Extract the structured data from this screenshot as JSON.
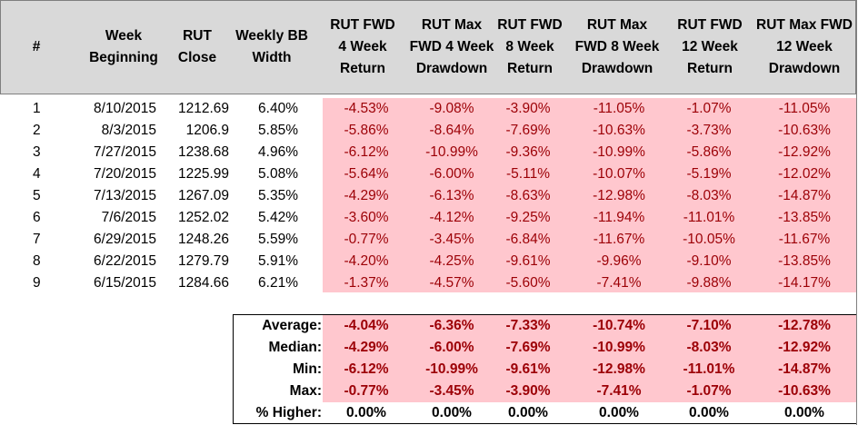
{
  "headers": [
    "#",
    "Week\nBeginning",
    "RUT\nClose",
    "Weekly BB\nWidth",
    "RUT FWD\n4 Week\nReturn",
    "RUT Max\nFWD 4 Week\nDrawdown",
    "RUT FWD\n8 Week\nReturn",
    "RUT Max\nFWD 8 Week\nDrawdown",
    "RUT FWD\n12 Week\nReturn",
    "RUT Max FWD\n12 Week\nDrawdown"
  ],
  "rows": [
    {
      "n": "1",
      "week": "8/10/2015",
      "close": "1212.69",
      "bb": "6.40%",
      "r4": "-4.53%",
      "d4": "-9.08%",
      "r8": "-3.90%",
      "d8": "-11.05%",
      "r12": "-1.07%",
      "d12": "-11.05%"
    },
    {
      "n": "2",
      "week": "8/3/2015",
      "close": "1206.9",
      "bb": "5.85%",
      "r4": "-5.86%",
      "d4": "-8.64%",
      "r8": "-7.69%",
      "d8": "-10.63%",
      "r12": "-3.73%",
      "d12": "-10.63%"
    },
    {
      "n": "3",
      "week": "7/27/2015",
      "close": "1238.68",
      "bb": "4.96%",
      "r4": "-6.12%",
      "d4": "-10.99%",
      "r8": "-9.36%",
      "d8": "-10.99%",
      "r12": "-5.86%",
      "d12": "-12.92%"
    },
    {
      "n": "4",
      "week": "7/20/2015",
      "close": "1225.99",
      "bb": "5.08%",
      "r4": "-5.64%",
      "d4": "-6.00%",
      "r8": "-5.11%",
      "d8": "-10.07%",
      "r12": "-5.19%",
      "d12": "-12.02%"
    },
    {
      "n": "5",
      "week": "7/13/2015",
      "close": "1267.09",
      "bb": "5.35%",
      "r4": "-4.29%",
      "d4": "-6.13%",
      "r8": "-8.63%",
      "d8": "-12.98%",
      "r12": "-8.03%",
      "d12": "-14.87%"
    },
    {
      "n": "6",
      "week": "7/6/2015",
      "close": "1252.02",
      "bb": "5.42%",
      "r4": "-3.60%",
      "d4": "-4.12%",
      "r8": "-9.25%",
      "d8": "-11.94%",
      "r12": "-11.01%",
      "d12": "-13.85%"
    },
    {
      "n": "7",
      "week": "6/29/2015",
      "close": "1248.26",
      "bb": "5.59%",
      "r4": "-0.77%",
      "d4": "-3.45%",
      "r8": "-6.84%",
      "d8": "-11.67%",
      "r12": "-10.05%",
      "d12": "-11.67%"
    },
    {
      "n": "8",
      "week": "6/22/2015",
      "close": "1279.79",
      "bb": "5.91%",
      "r4": "-4.20%",
      "d4": "-4.25%",
      "r8": "-9.61%",
      "d8": "-9.96%",
      "r12": "-9.10%",
      "d12": "-13.85%"
    },
    {
      "n": "9",
      "week": "6/15/2015",
      "close": "1284.66",
      "bb": "6.21%",
      "r4": "-1.37%",
      "d4": "-4.57%",
      "r8": "-5.60%",
      "d8": "-7.41%",
      "r12": "-9.88%",
      "d12": "-14.17%"
    }
  ],
  "summary": [
    {
      "label": "Average:",
      "values": [
        "-4.04%",
        "-6.36%",
        "-7.33%",
        "-10.74%",
        "-7.10%",
        "-12.78%"
      ]
    },
    {
      "label": "Median:",
      "values": [
        "-4.29%",
        "-6.00%",
        "-7.69%",
        "-10.99%",
        "-8.03%",
        "-12.92%"
      ]
    },
    {
      "label": "Min:",
      "values": [
        "-6.12%",
        "-10.99%",
        "-9.61%",
        "-12.98%",
        "-11.01%",
        "-14.87%"
      ]
    },
    {
      "label": "Max:",
      "values": [
        "-0.77%",
        "-3.45%",
        "-3.90%",
        "-7.41%",
        "-1.07%",
        "-10.63%"
      ]
    },
    {
      "label": "% Higher:",
      "values": [
        "0.00%",
        "0.00%",
        "0.00%",
        "0.00%",
        "0.00%",
        "0.00%"
      ]
    }
  ],
  "colors": {
    "header_bg": "#d9d9d9",
    "negative_fill": "#ffc7ce",
    "negative_text": "#9c0006"
  }
}
